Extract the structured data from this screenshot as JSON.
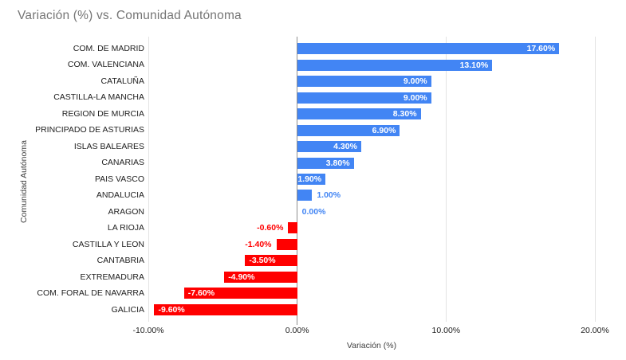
{
  "title": "Variación (%) vs. Comunidad Autónoma",
  "chart_data": {
    "type": "bar",
    "orientation": "horizontal",
    "title": "Variación (%) vs. Comunidad Autónoma",
    "xlabel": "Variación (%)",
    "ylabel": "Comunidad Autónoma",
    "xlim": [
      -10,
      20
    ],
    "grid": true,
    "legend": false,
    "x_ticks": [
      {
        "value": -10,
        "label": "-10.00%"
      },
      {
        "value": 0,
        "label": "0.00%"
      },
      {
        "value": 10,
        "label": "10.00%"
      },
      {
        "value": 20,
        "label": "20.00%"
      }
    ],
    "categories": [
      "COM. DE MADRID",
      "COM. VALENCIANA",
      "CATALUÑA",
      "CASTILLA-LA MANCHA",
      "REGION DE MURCIA",
      "PRINCIPADO DE ASTURIAS",
      "ISLAS BALEARES",
      "CANARIAS",
      "PAIS VASCO",
      "ANDALUCIA",
      "ARAGON",
      "LA RIOJA",
      "CASTILLA Y LEON",
      "CANTABRIA",
      "EXTREMADURA",
      "COM. FORAL DE NAVARRA",
      "GALICIA"
    ],
    "values": [
      17.6,
      13.1,
      9.0,
      9.0,
      8.3,
      6.9,
      4.3,
      3.8,
      1.9,
      1.0,
      0.0,
      -0.6,
      -1.4,
      -3.5,
      -4.9,
      -7.6,
      -9.6
    ],
    "value_labels": [
      "17.60%",
      "13.10%",
      "9.00%",
      "9.00%",
      "8.30%",
      "6.90%",
      "4.30%",
      "3.80%",
      "1.90%",
      "1.00%",
      "0.00%",
      "-0.60%",
      "-1.40%",
      "-3.50%",
      "-4.90%",
      "-7.60%",
      "-9.60%"
    ],
    "colors": {
      "positive": "#4285f4",
      "negative": "#ff0000",
      "title": "#757575",
      "axis_text": "#212121",
      "gridline": "#e3e3e3",
      "axis_line": "#8f8f8f"
    }
  }
}
